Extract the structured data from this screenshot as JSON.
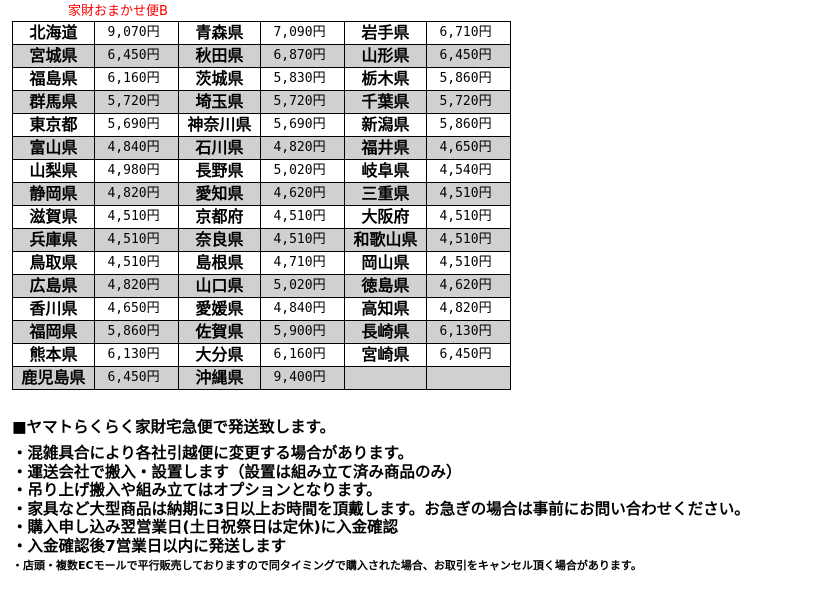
{
  "title": "家財おまかせ便B",
  "colors": {
    "title": "#ff0000",
    "row_alt": "#d0d0d0"
  },
  "rows": [
    [
      [
        "北海道",
        "9,070円"
      ],
      [
        "青森県",
        "7,090円"
      ],
      [
        "岩手県",
        "6,710円"
      ]
    ],
    [
      [
        "宮城県",
        "6,450円"
      ],
      [
        "秋田県",
        "6,870円"
      ],
      [
        "山形県",
        "6,450円"
      ]
    ],
    [
      [
        "福島県",
        "6,160円"
      ],
      [
        "茨城県",
        "5,830円"
      ],
      [
        "栃木県",
        "5,860円"
      ]
    ],
    [
      [
        "群馬県",
        "5,720円"
      ],
      [
        "埼玉県",
        "5,720円"
      ],
      [
        "千葉県",
        "5,720円"
      ]
    ],
    [
      [
        "東京都",
        "5,690円"
      ],
      [
        "神奈川県",
        "5,690円"
      ],
      [
        "新潟県",
        "5,860円"
      ]
    ],
    [
      [
        "富山県",
        "4,840円"
      ],
      [
        "石川県",
        "4,820円"
      ],
      [
        "福井県",
        "4,650円"
      ]
    ],
    [
      [
        "山梨県",
        "4,980円"
      ],
      [
        "長野県",
        "5,020円"
      ],
      [
        "岐阜県",
        "4,540円"
      ]
    ],
    [
      [
        "静岡県",
        "4,820円"
      ],
      [
        "愛知県",
        "4,620円"
      ],
      [
        "三重県",
        "4,510円"
      ]
    ],
    [
      [
        "滋賀県",
        "4,510円"
      ],
      [
        "京都府",
        "4,510円"
      ],
      [
        "大阪府",
        "4,510円"
      ]
    ],
    [
      [
        "兵庫県",
        "4,510円"
      ],
      [
        "奈良県",
        "4,510円"
      ],
      [
        "和歌山県",
        "4,510円"
      ]
    ],
    [
      [
        "鳥取県",
        "4,510円"
      ],
      [
        "島根県",
        "4,710円"
      ],
      [
        "岡山県",
        "4,510円"
      ]
    ],
    [
      [
        "広島県",
        "4,820円"
      ],
      [
        "山口県",
        "5,020円"
      ],
      [
        "徳島県",
        "4,620円"
      ]
    ],
    [
      [
        "香川県",
        "4,650円"
      ],
      [
        "愛媛県",
        "4,840円"
      ],
      [
        "高知県",
        "4,820円"
      ]
    ],
    [
      [
        "福岡県",
        "5,860円"
      ],
      [
        "佐賀県",
        "5,900円"
      ],
      [
        "長崎県",
        "6,130円"
      ]
    ],
    [
      [
        "熊本県",
        "6,130円"
      ],
      [
        "大分県",
        "6,160円"
      ],
      [
        "宮崎県",
        "6,450円"
      ]
    ],
    [
      [
        "鹿児島県",
        "6,450円"
      ],
      [
        "沖縄県",
        "9,400円"
      ],
      [
        "",
        ""
      ]
    ]
  ],
  "notes": {
    "heading": "■ヤマトらくらく家財宅急便で発送致します。",
    "lines": [
      "・混雑具合により各社引越便に変更する場合があります。",
      "・運送会社で搬入・設置します（設置は組み立て済み商品のみ）",
      "・吊り上げ搬入や組み立てはオプションとなります。",
      "・家具など大型商品は納期に3日以上お時間を頂戴します。お急ぎの場合は事前にお問い合わせください。",
      "・購入申し込み翌営業日(土日祝祭日は定休)に入金確認",
      "・入金確認後7営業日以内に発送します"
    ],
    "footnote": "・店頭・複数ECモールで平行販売しておりますので同タイミングで購入された場合、お取引をキャンセル頂く場合があります。"
  }
}
